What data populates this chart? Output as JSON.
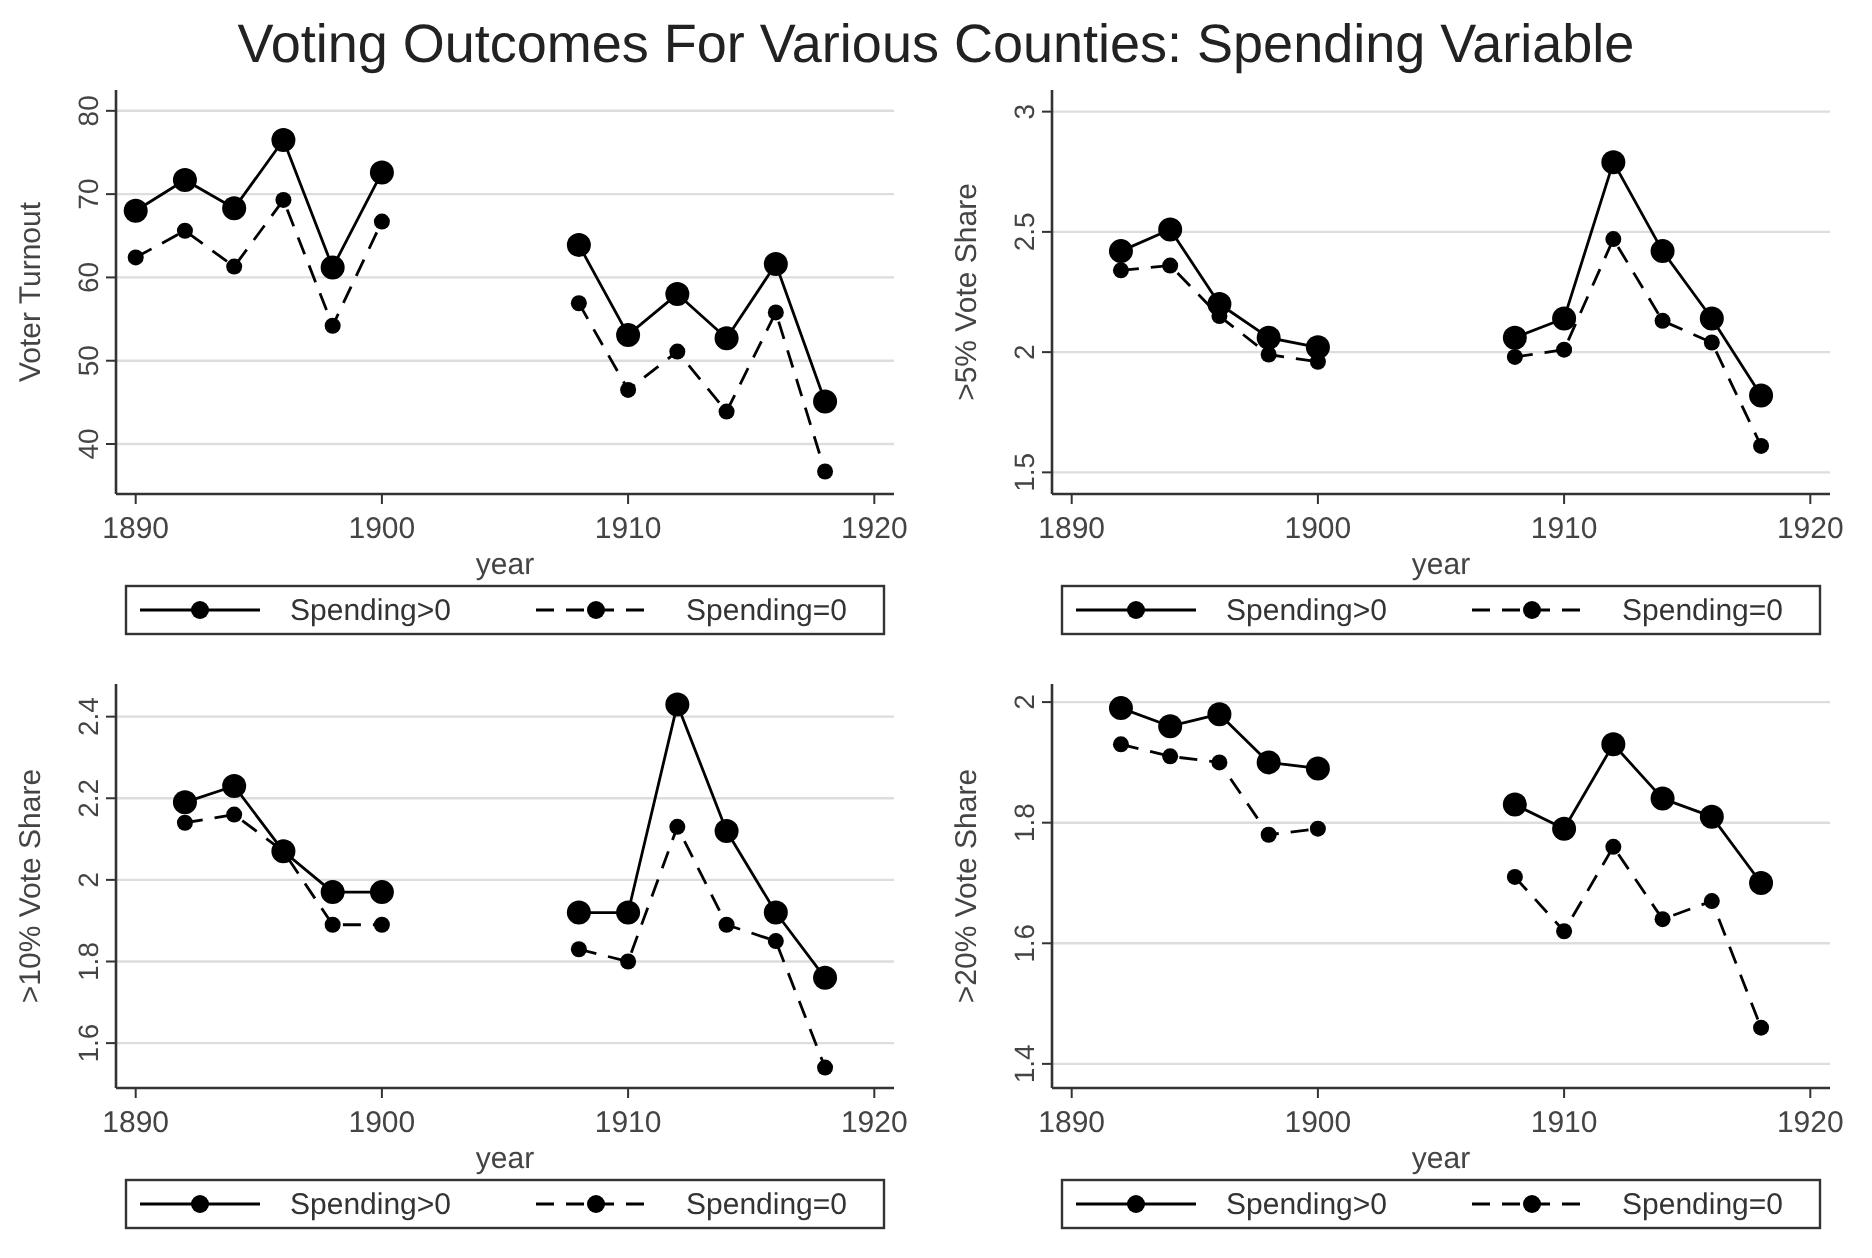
{
  "chart_data": [
    {
      "type": "line",
      "title": "Voting Outcomes For Various Counties: Spending Variable",
      "ylabel": "Voter Turnout",
      "xlabel": "year",
      "x": [
        1890,
        1892,
        1894,
        1896,
        1898,
        1900,
        1904,
        1908,
        1910,
        1912,
        1914,
        1916,
        1918
      ],
      "xlim": [
        1889.2,
        1920.8
      ],
      "xticks": [
        1890,
        1900,
        1910,
        1920
      ],
      "ylim": [
        34,
        82.5
      ],
      "yticks": [
        40,
        50,
        60,
        70,
        80
      ],
      "grid": "y",
      "legend": "bottom",
      "marker": "circle",
      "series": [
        {
          "name": "Spending>0",
          "color": "#000000",
          "line_style": "solid",
          "values": [
            68.0,
            71.7,
            68.3,
            76.5,
            61.2,
            72.6,
            null,
            63.9,
            53.1,
            58.0,
            52.7,
            61.6,
            45.1
          ]
        },
        {
          "name": "Spending=0",
          "color": "#000000",
          "line_style": "dashed",
          "values": [
            62.4,
            65.6,
            61.3,
            69.3,
            54.2,
            66.7,
            null,
            56.9,
            46.5,
            51.1,
            43.9,
            55.8,
            36.7
          ]
        }
      ]
    },
    {
      "type": "line",
      "ylabel": ">5% Vote Share",
      "xlabel": "year",
      "x": [
        1892,
        1894,
        1896,
        1898,
        1900,
        1904,
        1908,
        1910,
        1912,
        1914,
        1916,
        1918
      ],
      "xlim": [
        1889.2,
        1920.8
      ],
      "xticks": [
        1890,
        1900,
        1910,
        1920
      ],
      "ylim": [
        1.41,
        3.09
      ],
      "yticks": [
        {
          "value": 1.5,
          "label": "1.5"
        },
        2,
        {
          "value": 2.5,
          "label": "2.5"
        },
        3
      ],
      "grid": "y",
      "legend": "bottom",
      "marker": "circle",
      "series": [
        {
          "name": "Spending>0",
          "color": "#000000",
          "line_style": "solid",
          "values": [
            2.42,
            2.51,
            2.2,
            2.06,
            2.02,
            null,
            2.06,
            2.14,
            2.79,
            2.42,
            2.14,
            1.82
          ]
        },
        {
          "name": "Spending=0",
          "color": "#000000",
          "line_style": "dashed",
          "values": [
            2.34,
            2.36,
            2.15,
            1.99,
            1.96,
            null,
            1.98,
            2.01,
            2.47,
            2.13,
            2.04,
            1.61
          ]
        }
      ]
    },
    {
      "type": "line",
      "ylabel": ">10% Vote Share",
      "xlabel": "year",
      "x": [
        1892,
        1894,
        1896,
        1898,
        1900,
        1904,
        1908,
        1910,
        1912,
        1914,
        1916,
        1918
      ],
      "xlim": [
        1889.2,
        1920.8
      ],
      "xticks": [
        1890,
        1900,
        1910,
        1920
      ],
      "ylim": [
        1.49,
        2.48
      ],
      "yticks": [
        {
          "value": 1.6,
          "label": "1.6"
        },
        {
          "value": 1.8,
          "label": "1.8"
        },
        2,
        {
          "value": 2.2,
          "label": "2.2"
        },
        {
          "value": 2.4,
          "label": "2.4"
        }
      ],
      "grid": "y",
      "legend": "bottom",
      "marker": "circle",
      "series": [
        {
          "name": "Spending>0",
          "color": "#000000",
          "line_style": "solid",
          "values": [
            2.19,
            2.23,
            2.07,
            1.97,
            1.97,
            null,
            1.92,
            1.92,
            2.43,
            2.12,
            1.92,
            1.76
          ]
        },
        {
          "name": "Spending=0",
          "color": "#000000",
          "line_style": "dashed",
          "values": [
            2.14,
            2.16,
            2.07,
            1.89,
            1.89,
            null,
            1.83,
            1.8,
            2.13,
            1.89,
            1.85,
            1.54
          ]
        }
      ]
    },
    {
      "type": "line",
      "ylabel": ">20% Vote Share",
      "xlabel": "year",
      "x": [
        1892,
        1894,
        1896,
        1898,
        1900,
        1904,
        1908,
        1910,
        1912,
        1914,
        1916,
        1918
      ],
      "xlim": [
        1889.2,
        1920.8
      ],
      "xticks": [
        1890,
        1900,
        1910,
        1920
      ],
      "ylim": [
        1.36,
        2.03
      ],
      "yticks": [
        {
          "value": 1.4,
          "label": "1.4"
        },
        {
          "value": 1.6,
          "label": "1.6"
        },
        {
          "value": 1.8,
          "label": "1.8"
        },
        2
      ],
      "grid": "y",
      "legend": "bottom",
      "marker": "circle",
      "series": [
        {
          "name": "Spending>0",
          "color": "#000000",
          "line_style": "solid",
          "values": [
            1.99,
            1.96,
            1.98,
            1.9,
            1.89,
            null,
            1.83,
            1.79,
            1.93,
            1.84,
            1.81,
            1.7
          ]
        },
        {
          "name": "Spending=0",
          "color": "#000000",
          "line_style": "dashed",
          "values": [
            1.93,
            1.91,
            1.9,
            1.78,
            1.79,
            null,
            1.71,
            1.62,
            1.76,
            1.64,
            1.67,
            1.46
          ]
        }
      ]
    }
  ]
}
